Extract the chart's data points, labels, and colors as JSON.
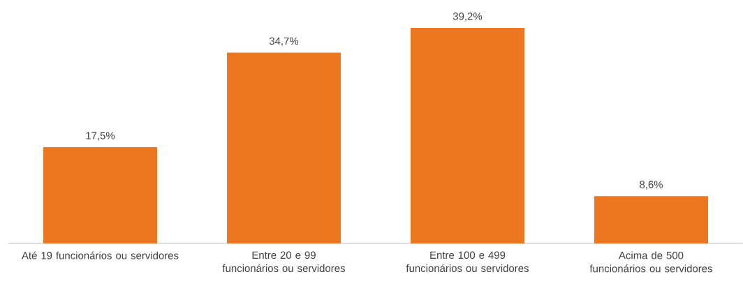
{
  "chart_data": {
    "type": "bar",
    "categories": [
      "Até 19 funcionários ou servidores",
      "Entre 20 e 99 funcionários ou servidores",
      "Entre 100 e 499 funcionários ou servidores",
      "Acima de 500 funcionários ou servidores"
    ],
    "values": [
      17.5,
      34.7,
      39.2,
      8.6
    ],
    "value_labels": [
      "17,5%",
      "34,7%",
      "39,2%",
      "8,6%"
    ],
    "color": "#ed7620"
  }
}
